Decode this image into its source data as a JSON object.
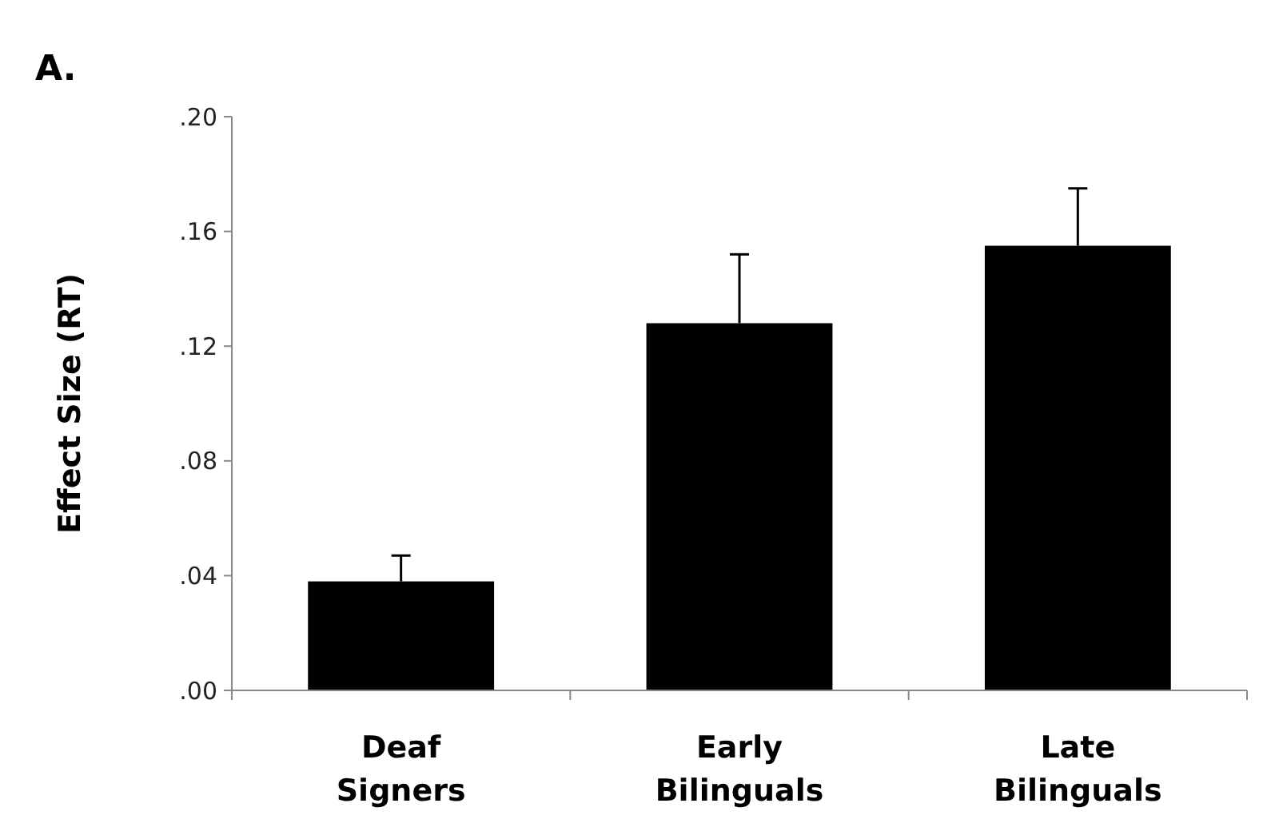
{
  "chart_data": {
    "type": "bar",
    "title": "A.",
    "ylabel": "Effect Size (RT)",
    "categories": [
      "Deaf Signers",
      "Early Bilinguals",
      "Late Bilinguals"
    ],
    "values": [
      0.038,
      0.128,
      0.155
    ],
    "color": "#000000",
    "errors": [
      [
        0.038,
        0.047
      ],
      [
        0.128,
        0.152
      ],
      [
        0.155,
        0.175
      ]
    ],
    "ylim": [
      0,
      0.2
    ],
    "yticks": [
      {
        "value": 0,
        "label": ".00"
      },
      {
        "value": 0.04,
        "label": ".04"
      },
      {
        "value": 0.08,
        "label": ".08"
      },
      {
        "value": 0.12,
        "label": ".12"
      },
      {
        "value": 0.16,
        "label": ".16"
      },
      {
        "value": 0.2,
        "label": ".20"
      }
    ],
    "grid": false
  }
}
